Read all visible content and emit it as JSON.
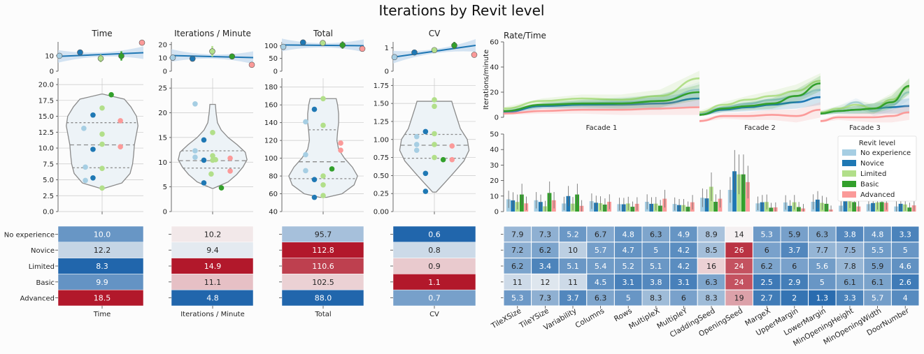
{
  "figure": {
    "title": "Iterations by Revit level"
  },
  "colors": {
    "No experience": "#a6cee3",
    "Novice": "#1f78b4",
    "Limited": "#b2df8a",
    "Basic": "#33a02c",
    "Advanced": "#fb9a99",
    "violin_fill": "#edf3f7",
    "violin_edge": "#8a8a8a",
    "reg_line": "#1f77b4",
    "reg_band": "#c6dbef",
    "heat_low": "#2166ac",
    "heat_mid": "#f7f7f7",
    "heat_high": "#b2182b"
  },
  "levels": [
    "No experience",
    "Novice",
    "Limited",
    "Basic",
    "Advanced"
  ],
  "chart_data": [
    {
      "type": "scatter",
      "panel": "mean-time",
      "title": "Time",
      "ylim": [
        0,
        19
      ],
      "yticks": [
        0,
        10
      ],
      "points": [
        10.0,
        12.2,
        8.3,
        9.9,
        18.5
      ],
      "err": [
        0,
        1.2,
        2.5,
        3.0,
        0
      ],
      "fit": [
        9.6,
        12.0
      ]
    },
    {
      "type": "scatter",
      "panel": "mean-ipm",
      "title": "Iterations / Minute",
      "ylim": [
        0,
        22
      ],
      "yticks": [
        0,
        10,
        20
      ],
      "points": [
        10.2,
        9.4,
        14.9,
        11.1,
        4.8
      ],
      "err": [
        0,
        1.2,
        4.0,
        1.5,
        0
      ],
      "fit": [
        11.8,
        10.2
      ]
    },
    {
      "type": "scatter",
      "panel": "mean-total",
      "title": "Total",
      "ylim": [
        0,
        115
      ],
      "yticks": [
        0,
        50,
        100
      ],
      "points": [
        95.7,
        112.8,
        110.6,
        102.5,
        88.0
      ],
      "err": [
        0,
        3,
        10,
        14,
        0
      ],
      "fit": [
        103,
        100
      ]
    },
    {
      "type": "scatter",
      "panel": "mean-cv",
      "title": "CV",
      "ylim": [
        0,
        1.25
      ],
      "yticks": [
        0,
        1
      ],
      "points": [
        0.6,
        0.8,
        0.9,
        1.1,
        0.7
      ],
      "err": [
        0,
        0.05,
        0.05,
        0.15,
        0
      ],
      "fit": [
        0.6,
        1.1
      ]
    },
    {
      "type": "violin",
      "panel": "violin-time",
      "title": "",
      "ylim": [
        0,
        21
      ],
      "yticks": [
        "0.0",
        "2.5",
        "5.0",
        "7.5",
        "10.0",
        "12.5",
        "15.0",
        "17.5",
        "20.0"
      ],
      "ytick_values": [
        0,
        2.5,
        5,
        7.5,
        10,
        12.5,
        15,
        17.5,
        20
      ],
      "min": 3.6,
      "max": 18.5,
      "quartiles": [
        6.9,
        10.5,
        14.0
      ],
      "profile": [
        [
          3.6,
          0.02
        ],
        [
          4.5,
          0.55
        ],
        [
          6,
          0.78
        ],
        [
          7.5,
          0.85
        ],
        [
          9,
          0.88
        ],
        [
          10.5,
          0.9
        ],
        [
          12,
          0.95
        ],
        [
          13.5,
          1.0
        ],
        [
          15,
          0.96
        ],
        [
          16.5,
          0.8
        ],
        [
          17.7,
          0.62
        ],
        [
          18.5,
          0.02
        ]
      ],
      "dots": [
        [
          "No experience",
          13.1,
          -0.6
        ],
        [
          "No experience",
          7.0,
          -0.55
        ],
        [
          "No experience",
          4.9,
          -0.55
        ],
        [
          "Novice",
          15.2,
          -0.3
        ],
        [
          "Novice",
          9.8,
          -0.3
        ],
        [
          "Novice",
          5.3,
          -0.3
        ],
        [
          "Limited",
          16.3,
          0
        ],
        [
          "Limited",
          12.2,
          0
        ],
        [
          "Limited",
          10.6,
          0
        ],
        [
          "Limited",
          6.8,
          0
        ],
        [
          "Limited",
          3.7,
          0
        ],
        [
          "Basic",
          18.4,
          0.3
        ],
        [
          "Advanced",
          14.3,
          0.6
        ],
        [
          "Advanced",
          10.2,
          0.6
        ]
      ]
    },
    {
      "type": "violin",
      "panel": "violin-ipm",
      "title": "",
      "ylim": [
        0,
        27
      ],
      "yticks": [
        "0",
        "5",
        "10",
        "15",
        "20",
        "25"
      ],
      "ytick_values": [
        0,
        5,
        10,
        15,
        20,
        25
      ],
      "min": 4.7,
      "max": 21.7,
      "quartiles": [
        8.8,
        10.3,
        12.3
      ],
      "profile": [
        [
          4.7,
          0.02
        ],
        [
          6,
          0.45
        ],
        [
          7.5,
          0.7
        ],
        [
          9,
          0.88
        ],
        [
          10.5,
          1.0
        ],
        [
          12,
          0.95
        ],
        [
          13.5,
          0.72
        ],
        [
          15,
          0.45
        ],
        [
          16.5,
          0.25
        ],
        [
          18,
          0.14
        ],
        [
          20,
          0.1
        ],
        [
          21.7,
          0.08
        ]
      ],
      "dots": [
        [
          "No experience",
          21.8,
          -0.6
        ],
        [
          "No experience",
          12.3,
          -0.6
        ],
        [
          "No experience",
          11.0,
          -0.6
        ],
        [
          "Novice",
          14.5,
          -0.3
        ],
        [
          "Novice",
          10.4,
          -0.3
        ],
        [
          "Novice",
          5.8,
          -0.3
        ],
        [
          "Limited",
          16.0,
          0
        ],
        [
          "Limited",
          11.3,
          0
        ],
        [
          "Limited",
          10.4,
          0
        ],
        [
          "Limited",
          7.6,
          -0.05
        ],
        [
          "Limited",
          10.5,
          0.1
        ],
        [
          "Basic",
          4.8,
          0.3
        ],
        [
          "Advanced",
          10.8,
          0.6
        ],
        [
          "Advanced",
          8.2,
          0.6
        ]
      ]
    },
    {
      "type": "violin",
      "panel": "violin-total",
      "title": "",
      "ylim": [
        40,
        190
      ],
      "yticks": [
        "40",
        "60",
        "80",
        "100",
        "120",
        "140",
        "160",
        "180"
      ],
      "ytick_values": [
        40,
        60,
        80,
        100,
        120,
        140,
        160,
        180
      ],
      "min": 56,
      "max": 167,
      "quartiles": [
        77,
        96,
        132
      ],
      "profile": [
        [
          56,
          0.1
        ],
        [
          60,
          0.55
        ],
        [
          70,
          0.9
        ],
        [
          80,
          1.0
        ],
        [
          90,
          0.85
        ],
        [
          100,
          0.62
        ],
        [
          110,
          0.45
        ],
        [
          120,
          0.4
        ],
        [
          130,
          0.42
        ],
        [
          140,
          0.45
        ],
        [
          150,
          0.45
        ],
        [
          160,
          0.42
        ],
        [
          167,
          0.38
        ]
      ],
      "dots": [
        [
          "No experience",
          141,
          -0.6
        ],
        [
          "No experience",
          104,
          -0.6
        ],
        [
          "No experience",
          86,
          -0.6
        ],
        [
          "Novice",
          155,
          -0.3
        ],
        [
          "Novice",
          76,
          -0.3
        ],
        [
          "Novice",
          56,
          -0.3
        ],
        [
          "Limited",
          167,
          0
        ],
        [
          "Limited",
          137,
          0
        ],
        [
          "Limited",
          80,
          0
        ],
        [
          "Limited",
          70,
          0
        ],
        [
          "Limited",
          58,
          0
        ],
        [
          "Basic",
          88,
          0.3
        ],
        [
          "Advanced",
          117,
          0.6
        ],
        [
          "Advanced",
          109,
          0.6
        ]
      ]
    },
    {
      "type": "violin",
      "panel": "violin-cv",
      "title": "",
      "ylim": [
        0,
        1.85
      ],
      "yticks": [
        "0.00",
        "0.25",
        "0.50",
        "0.75",
        "1.00",
        "1.25",
        "1.50",
        "1.75"
      ],
      "ytick_values": [
        0,
        0.25,
        0.5,
        0.75,
        1.0,
        1.25,
        1.5,
        1.75
      ],
      "min": 0.27,
      "max": 1.53,
      "quartiles": [
        0.74,
        0.92,
        1.07
      ],
      "profile": [
        [
          0.27,
          0.05
        ],
        [
          0.4,
          0.3
        ],
        [
          0.55,
          0.58
        ],
        [
          0.7,
          0.85
        ],
        [
          0.85,
          1.0
        ],
        [
          1.0,
          0.95
        ],
        [
          1.15,
          0.75
        ],
        [
          1.3,
          0.65
        ],
        [
          1.45,
          0.55
        ],
        [
          1.53,
          0.5
        ]
      ],
      "dots": [
        [
          "No experience",
          1.04,
          -0.6
        ],
        [
          "No experience",
          0.93,
          -0.6
        ],
        [
          "No experience",
          0.85,
          -0.6
        ],
        [
          "Novice",
          1.11,
          -0.3
        ],
        [
          "Novice",
          0.53,
          -0.3
        ],
        [
          "Novice",
          0.28,
          -0.3
        ],
        [
          "Limited",
          1.55,
          0
        ],
        [
          "Limited",
          1.46,
          0
        ],
        [
          "Limited",
          1.08,
          0
        ],
        [
          "Limited",
          0.93,
          0
        ],
        [
          "Limited",
          0.75,
          0
        ],
        [
          "Basic",
          0.72,
          0.3
        ],
        [
          "Advanced",
          0.91,
          0.6
        ],
        [
          "Advanced",
          0.72,
          0.6
        ]
      ]
    },
    {
      "type": "heatmap",
      "panel": "heat-time",
      "xlabel": "Time",
      "values": [
        "10.0",
        "12.2",
        "8.3",
        "9.9",
        "18.5"
      ],
      "cmin": 8.3,
      "cmax": 18.5
    },
    {
      "type": "heatmap",
      "panel": "heat-ipm",
      "xlabel": "Iterations / Minute",
      "values": [
        "10.2",
        "9.4",
        "14.9",
        "11.1",
        "4.8"
      ],
      "cmin": 4.8,
      "cmax": 14.9
    },
    {
      "type": "heatmap",
      "panel": "heat-total",
      "xlabel": "Total",
      "values": [
        "95.7",
        "112.8",
        "110.6",
        "102.5",
        "88.0"
      ],
      "cmin": 88.0,
      "cmax": 112.8
    },
    {
      "type": "heatmap",
      "panel": "heat-cv",
      "xlabel": "CV",
      "values": [
        "0.6",
        "0.8",
        "0.9",
        "1.1",
        "0.7"
      ],
      "cmin": 0.6,
      "cmax": 1.1
    },
    {
      "type": "line",
      "panel": "rate-time",
      "title": "Rate/Time",
      "ylabel": "Iterations/minute",
      "ylim": [
        0,
        60
      ],
      "yticks": [
        0,
        20,
        40,
        60
      ],
      "facets": [
        "Facade 1",
        "Facade 2",
        "Facade 3"
      ],
      "series": [
        {
          "name": "No experience",
          "facets": [
            [
              4,
              9,
              11,
              12,
              13,
              22
            ],
            [
              3,
              8,
              11,
              14,
              17,
              22
            ],
            [
              4,
              7,
              12,
              5,
              10,
              20
            ]
          ]
        },
        {
          "name": "Novice",
          "facets": [
            [
              4,
              9,
              10,
              10,
              11,
              15
            ],
            [
              2,
              6,
              8,
              10,
              12,
              16
            ],
            [
              3,
              5,
              6,
              7,
              8,
              9
            ]
          ]
        },
        {
          "name": "Limited",
          "facets": [
            [
              7,
              13,
              15,
              14,
              17,
              31
            ],
            [
              4,
              10,
              14,
              17,
              21,
              29
            ],
            [
              4,
              7,
              10,
              7,
              14,
              24
            ]
          ]
        },
        {
          "name": "Basic",
          "facets": [
            [
              5,
              10,
              11,
              11,
              13,
              20
            ],
            [
              2,
              7,
              9,
              11,
              17,
              27
            ],
            [
              3,
              5,
              6,
              7,
              12,
              25
            ]
          ]
        },
        {
          "name": "Advanced",
          "facets": [
            [
              3,
              5,
              6,
              6,
              7,
              8
            ],
            [
              -3,
              1,
              1,
              2,
              1,
              6
            ],
            [
              -3,
              0,
              0,
              0,
              1,
              4
            ]
          ]
        }
      ]
    },
    {
      "type": "bar",
      "panel": "params-bar",
      "title": "",
      "ylim": [
        0,
        50
      ],
      "yticks": [
        0,
        10,
        20,
        30,
        40,
        50
      ],
      "legend_title": "Revit level",
      "legend_position": "upper-right",
      "categories": [
        "TileXSize",
        "TileYSize",
        "Variability",
        "Columns",
        "Rows",
        "MultipleX",
        "MultipleY",
        "CladdingSeed",
        "OpeningSeed",
        "MargeX",
        "UpperMargin",
        "LowerMargin",
        "MinOpeningHeight",
        "MinOpeningWidth",
        "DoorNumber"
      ],
      "series": [
        {
          "name": "No experience",
          "values": [
            7.9,
            7.3,
            5.2,
            6.7,
            4.8,
            6.3,
            4.9,
            8.9,
            14,
            5.3,
            5.9,
            6.3,
            3.8,
            4.8,
            3.3
          ]
        },
        {
          "name": "Novice",
          "values": [
            7.2,
            6.2,
            10,
            5.7,
            4.7,
            5,
            4.2,
            8.5,
            26,
            6,
            3.7,
            7.7,
            7.5,
            5.5,
            5
          ]
        },
        {
          "name": "Limited",
          "values": [
            6.2,
            3.4,
            5.1,
            5.4,
            5.2,
            5.1,
            4.2,
            16,
            24,
            6.2,
            6,
            5.6,
            7.8,
            5.9,
            4.6
          ]
        },
        {
          "name": "Basic",
          "values": [
            11,
            12,
            11,
            4.5,
            3.1,
            3.8,
            3.1,
            6.3,
            24,
            2.5,
            2.9,
            5,
            6.1,
            6.1,
            2.6
          ]
        },
        {
          "name": "Advanced",
          "values": [
            5.3,
            7.3,
            3.7,
            6.3,
            5,
            8.3,
            6,
            8.3,
            19,
            2.7,
            2,
            1.3,
            3.3,
            5.7,
            4
          ]
        }
      ]
    },
    {
      "type": "heatmap",
      "panel": "params-heat",
      "columns": [
        "TileXSize",
        "TileYSize",
        "Variability",
        "Columns",
        "Rows",
        "MultipleX",
        "MultipleY",
        "CladdingSeed",
        "OpeningSeed",
        "MargeX",
        "UpperMargin",
        "LowerMargin",
        "MinOpeningHeight",
        "MinOpeningWidth",
        "DoorNumber"
      ],
      "rows": [
        [
          "7.9",
          "7.3",
          "5.2",
          "6.7",
          "4.8",
          "6.3",
          "4.9",
          "8.9",
          "14",
          "5.3",
          "5.9",
          "6.3",
          "3.8",
          "4.8",
          "3.3"
        ],
        [
          "7.2",
          "6.2",
          "10",
          "5.7",
          "4.7",
          "5",
          "4.2",
          "8.5",
          "26",
          "6",
          "3.7",
          "7.7",
          "7.5",
          "5.5",
          "5"
        ],
        [
          "6.2",
          "3.4",
          "5.1",
          "5.4",
          "5.2",
          "5.1",
          "4.2",
          "16",
          "24",
          "6.2",
          "6",
          "5.6",
          "7.8",
          "5.9",
          "4.6"
        ],
        [
          "11",
          "12",
          "11",
          "4.5",
          "3.1",
          "3.8",
          "3.1",
          "6.3",
          "24",
          "2.5",
          "2.9",
          "5",
          "6.1",
          "6.1",
          "2.6"
        ],
        [
          "5.3",
          "7.3",
          "3.7",
          "6.3",
          "5",
          "8.3",
          "6",
          "8.3",
          "19",
          "2.7",
          "2",
          "1.3",
          "3.3",
          "5.7",
          "4"
        ]
      ],
      "cmin": 1.3,
      "cmax": 26,
      "cmid": 13
    }
  ]
}
